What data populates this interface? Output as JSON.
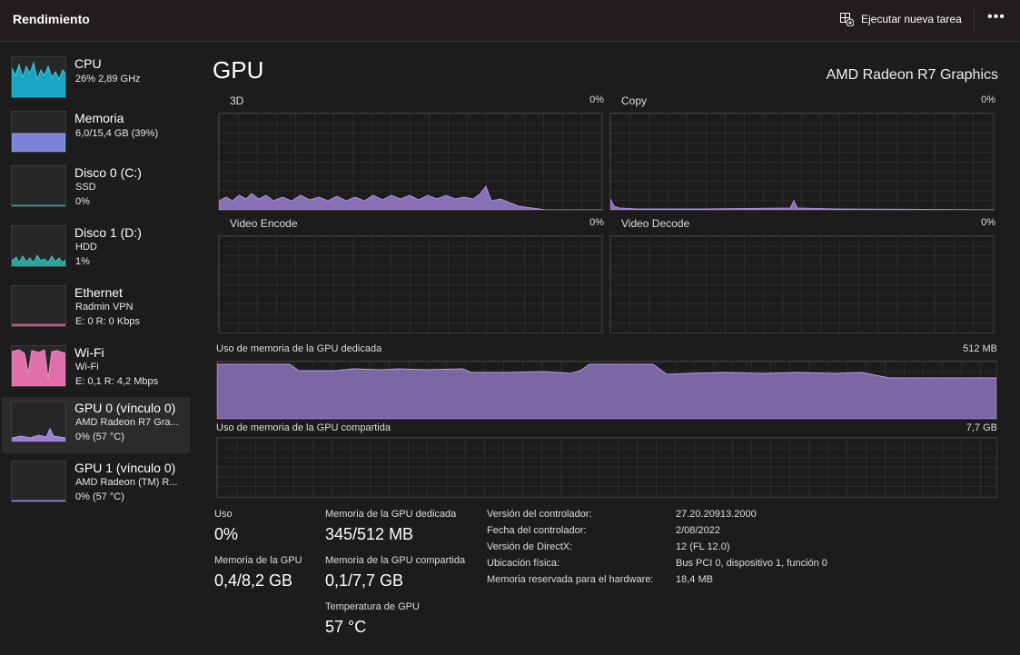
{
  "header": {
    "title": "Rendimiento",
    "action": "Ejecutar nueva tarea"
  },
  "sidebar": [
    {
      "name": "CPU",
      "lines": [
        "26%  2,89 GHz"
      ]
    },
    {
      "name": "Memoria",
      "lines": [
        "6,0/15,4 GB (39%)"
      ]
    },
    {
      "name": "Disco 0 (C:)",
      "lines": [
        "SSD",
        "0%"
      ]
    },
    {
      "name": "Disco 1 (D:)",
      "lines": [
        "HDD",
        "1%"
      ]
    },
    {
      "name": "Ethernet",
      "lines": [
        "Radmin VPN",
        "E: 0 R: 0 Kbps"
      ]
    },
    {
      "name": "Wi-Fi",
      "lines": [
        "Wi-Fi",
        "E: 0,1 R: 4,2 Mbps"
      ]
    },
    {
      "name": "GPU 0 (vínculo 0)",
      "lines": [
        "AMD Radeon R7 Gra...",
        "0% (57 °C)"
      ]
    },
    {
      "name": "GPU 1 (vínculo 0)",
      "lines": [
        "AMD Radeon (TM) R...",
        "0% (57 °C)"
      ]
    }
  ],
  "main": {
    "title": "GPU",
    "device": "AMD Radeon R7 Graphics",
    "engines": [
      {
        "name": "3D",
        "value": "0%"
      },
      {
        "name": "Copy",
        "value": "0%"
      },
      {
        "name": "Video Encode",
        "value": "0%"
      },
      {
        "name": "Video Decode",
        "value": "0%"
      }
    ],
    "memory_graphs": [
      {
        "label": "Uso de memoria de la GPU dedicada",
        "max": "512 MB"
      },
      {
        "label": "Uso de memoria de la GPU compartida",
        "max": "7,7 GB"
      }
    ],
    "stats": [
      [
        {
          "label": "Uso",
          "value": "0%"
        },
        {
          "label": "Memoria de la GPU",
          "value": "0,4/8,2 GB"
        }
      ],
      [
        {
          "label": "Memoria de la GPU dedicada",
          "value": "345/512 MB"
        },
        {
          "label": "Memoria de la GPU compartida",
          "value": "0,1/7,7 GB"
        },
        {
          "label": "Temperatura de GPU",
          "value": "57 °C"
        }
      ]
    ],
    "details": [
      {
        "label": "Versión del controlador:",
        "value": "27.20.20913.2000"
      },
      {
        "label": "Fecha del controlador:",
        "value": "2/08/2022"
      },
      {
        "label": "Versión de DirectX:",
        "value": "12 (FL 12.0)"
      },
      {
        "label": "Ubicación física:",
        "value": "Bus PCI 0, dispositivo 1, función 0"
      },
      {
        "label": "Memoria reservada para el hardware:",
        "value": "18,4 MB"
      }
    ]
  }
}
